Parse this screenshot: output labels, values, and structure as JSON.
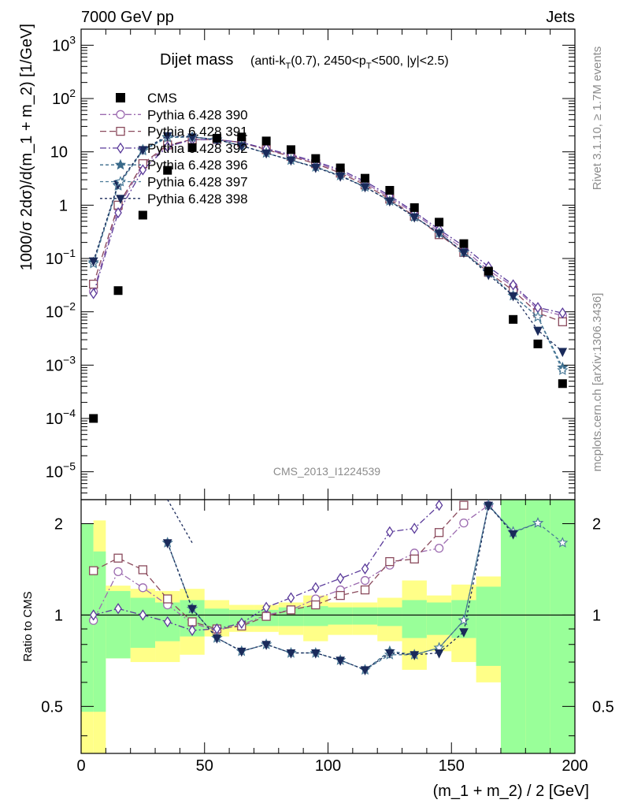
{
  "header": {
    "left": "7000 GeV pp",
    "right": "Jets"
  },
  "side_labels": {
    "rivet": "Rivet 3.1.10, ≥ 1.7M events",
    "mcplots": "mcplots.cern.ch [arXiv:1306.3436]"
  },
  "watermark": "CMS_2013_I1224539",
  "title": {
    "main": "Dijet mass",
    "t1": "(anti-k",
    "sub1": "T",
    "t2": "(0.7), 2450<p",
    "sub2": "T",
    "t3": "<500, |y|<2.5)"
  },
  "colors": {
    "data": "#000000",
    "band_inner": "#99ff99",
    "band_outer": "#ffff88"
  },
  "chart_data": {
    "type": "line",
    "xlabel": "(m_1 + m_2) / 2 [GeV]",
    "xlim": [
      0,
      200
    ],
    "x_ticks": [
      "0",
      "50",
      "100",
      "150",
      "200"
    ],
    "main_panel": {
      "ylabel": "1000/σ 2dσ)/d(m_1 + m_2) [1/GeV]",
      "yscale": "log",
      "ylim": [
        3e-06,
        2000
      ],
      "y_ticks": [
        {
          "v": 1e-05,
          "b": "10",
          "e": "−5"
        },
        {
          "v": 0.0001,
          "b": "10",
          "e": "−4"
        },
        {
          "v": 0.001,
          "b": "10",
          "e": "−3"
        },
        {
          "v": 0.01,
          "b": "10",
          "e": "−2"
        },
        {
          "v": 0.1,
          "b": "10",
          "e": "−1"
        },
        {
          "v": 1,
          "b": "1",
          "e": ""
        },
        {
          "v": 10,
          "b": "10",
          "e": ""
        },
        {
          "v": 100,
          "b": "10",
          "e": "2"
        },
        {
          "v": 1000,
          "b": "10",
          "e": "3"
        }
      ],
      "data": {
        "name": "CMS",
        "x": [
          5,
          15,
          25,
          35,
          45,
          55,
          65,
          75,
          85,
          95,
          105,
          115,
          125,
          135,
          145,
          155,
          165,
          175,
          185,
          195
        ],
        "y": [
          0.0001,
          0.025,
          0.65,
          4.5,
          12,
          18,
          19,
          16,
          11,
          7.5,
          5,
          3.2,
          1.9,
          0.9,
          0.48,
          0.19,
          0.058,
          0.0072,
          0.0025,
          0.00045
        ]
      },
      "series": [
        {
          "name": "Pythia 6.428 390",
          "color": "#9c6bb0",
          "marker": "circle",
          "dash": "8,3,2,3",
          "y": [
            0.024,
            0.9,
            5.5,
            13,
            17,
            17,
            15,
            11,
            8.5,
            6.3,
            4.3,
            2.6,
            1.4,
            0.7,
            0.32,
            0.15,
            0.06,
            0.03,
            0.011,
            0.0085
          ]
        },
        {
          "name": "Pythia 6.428 391",
          "color": "#8a4a5c",
          "marker": "square",
          "dash": "8,4",
          "y": [
            0.033,
            1.0,
            6.0,
            13.5,
            17,
            17,
            15,
            11,
            8.2,
            6.0,
            4.0,
            2.4,
            1.3,
            0.62,
            0.28,
            0.13,
            0.055,
            0.025,
            0.0095,
            0.0065
          ]
        },
        {
          "name": "Pythia 6.428 392",
          "color": "#5a3a9a",
          "marker": "diamond",
          "dash": "8,3,2,3",
          "y": [
            0.022,
            0.72,
            4.6,
            12.5,
            17,
            17,
            15,
            11.5,
            8.8,
            6.6,
            4.6,
            2.8,
            1.5,
            0.75,
            0.35,
            0.17,
            0.07,
            0.032,
            0.012,
            0.0095
          ]
        },
        {
          "name": "Pythia 6.428 396",
          "color": "#3a6a8a",
          "marker": "star-filled",
          "dash": "4,3",
          "y": [
            0.085,
            2.4,
            11,
            19,
            19,
            17,
            13,
            9.5,
            7.0,
            5.2,
            3.6,
            2.2,
            1.2,
            0.6,
            0.3,
            0.13,
            0.055,
            0.02,
            0.008,
            0.0009
          ]
        },
        {
          "name": "Pythia 6.428 397",
          "color": "#4a7a98",
          "marker": "star-open",
          "dash": "4,3",
          "y": [
            0.08,
            2.3,
            10.5,
            18.5,
            19,
            17,
            13,
            9.5,
            7.0,
            5.2,
            3.6,
            2.2,
            1.2,
            0.6,
            0.3,
            0.13,
            0.055,
            0.02,
            0.008,
            0.0008
          ]
        },
        {
          "name": "Pythia 6.428 398",
          "color": "#1a2a5a",
          "marker": "triangle-down",
          "dash": "3,3",
          "y": [
            0.09,
            2.5,
            11,
            20,
            19,
            17,
            13,
            9.5,
            7.0,
            5.1,
            3.5,
            2.2,
            1.2,
            0.6,
            0.3,
            0.13,
            0.05,
            0.02,
            0.0045,
            0.0018
          ]
        }
      ]
    },
    "ratio_panel": {
      "ylabel": "Ratio to CMS",
      "yscale": "log",
      "ylim": [
        0.35,
        2.4
      ],
      "y_ticks": [
        {
          "v": 0.5,
          "label": "0.5"
        },
        {
          "v": 1,
          "label": "1"
        },
        {
          "v": 2,
          "label": "2"
        }
      ],
      "bands": [
        {
          "x0": 0,
          "x1": 5,
          "inner": [
            0.48,
            2.0
          ],
          "outer": [
            0.35,
            2.0
          ]
        },
        {
          "x0": 5,
          "x1": 10,
          "inner": [
            0.48,
            1.62
          ],
          "outer": [
            0.35,
            2.05
          ]
        },
        {
          "x0": 10,
          "x1": 20,
          "inner": [
            0.72,
            1.2
          ],
          "outer": [
            0.72,
            1.25
          ]
        },
        {
          "x0": 20,
          "x1": 30,
          "inner": [
            0.78,
            1.14
          ],
          "outer": [
            0.7,
            1.22
          ]
        },
        {
          "x0": 30,
          "x1": 40,
          "inner": [
            0.82,
            1.1
          ],
          "outer": [
            0.7,
            1.2
          ]
        },
        {
          "x0": 40,
          "x1": 50,
          "inner": [
            0.85,
            1.12
          ],
          "outer": [
            0.74,
            1.22
          ]
        },
        {
          "x0": 50,
          "x1": 60,
          "inner": [
            0.9,
            1.05
          ],
          "outer": [
            0.85,
            1.12
          ]
        },
        {
          "x0": 60,
          "x1": 70,
          "inner": [
            0.92,
            1.04
          ],
          "outer": [
            0.88,
            1.08
          ]
        },
        {
          "x0": 70,
          "x1": 80,
          "inner": [
            0.92,
            1.04
          ],
          "outer": [
            0.88,
            1.08
          ]
        },
        {
          "x0": 80,
          "x1": 90,
          "inner": [
            0.92,
            1.06
          ],
          "outer": [
            0.86,
            1.1
          ]
        },
        {
          "x0": 90,
          "x1": 100,
          "inner": [
            0.92,
            1.07
          ],
          "outer": [
            0.82,
            1.16
          ]
        },
        {
          "x0": 100,
          "x1": 110,
          "inner": [
            0.93,
            1.06
          ],
          "outer": [
            0.86,
            1.1
          ]
        },
        {
          "x0": 110,
          "x1": 120,
          "inner": [
            0.93,
            1.06
          ],
          "outer": [
            0.86,
            1.1
          ]
        },
        {
          "x0": 120,
          "x1": 130,
          "inner": [
            0.92,
            1.06
          ],
          "outer": [
            0.82,
            1.14
          ]
        },
        {
          "x0": 130,
          "x1": 140,
          "inner": [
            0.84,
            1.12
          ],
          "outer": [
            0.66,
            1.3
          ]
        },
        {
          "x0": 140,
          "x1": 150,
          "inner": [
            0.86,
            1.1
          ],
          "outer": [
            0.76,
            1.16
          ]
        },
        {
          "x0": 150,
          "x1": 160,
          "inner": [
            0.84,
            1.12
          ],
          "outer": [
            0.7,
            1.26
          ]
        },
        {
          "x0": 160,
          "x1": 170,
          "inner": [
            0.68,
            1.24
          ],
          "outer": [
            0.6,
            1.34
          ]
        },
        {
          "x0": 170,
          "x1": 180,
          "inner": [
            0.35,
            2.4
          ],
          "outer": [
            0.35,
            2.4
          ]
        },
        {
          "x0": 180,
          "x1": 190,
          "inner": [
            0.35,
            2.4
          ],
          "outer": [
            0.35,
            2.4
          ]
        },
        {
          "x0": 190,
          "x1": 200,
          "inner": [
            0.35,
            2.4
          ],
          "outer": [
            0.35,
            2.4
          ]
        }
      ],
      "series": [
        {
          "name": "Pythia 6.428 390",
          "y": [
            0.96,
            1.39,
            1.23,
            1.08,
            0.94,
            0.89,
            0.93,
            1.0,
            1.04,
            1.13,
            1.21,
            1.3,
            1.46,
            1.6,
            1.66,
            2.01,
            2.3,
            null,
            null,
            null
          ]
        },
        {
          "name": "Pythia 6.428 391",
          "y": [
            1.4,
            1.54,
            1.41,
            1.13,
            0.95,
            0.9,
            0.92,
            0.99,
            1.04,
            1.08,
            1.16,
            1.21,
            1.5,
            1.53,
            1.87,
            2.3,
            null,
            null,
            null,
            null
          ]
        },
        {
          "name": "Pythia 6.428 392",
          "y": [
            1.0,
            1.05,
            1.0,
            0.95,
            0.89,
            0.9,
            0.94,
            1.06,
            1.14,
            1.23,
            1.32,
            1.42,
            1.88,
            1.93,
            2.3,
            null,
            null,
            null,
            null,
            null
          ]
        },
        {
          "name": "Pythia 6.428 396",
          "y": [
            null,
            null,
            null,
            1.73,
            1.05,
            0.84,
            0.76,
            0.8,
            0.75,
            0.75,
            0.71,
            0.66,
            0.76,
            0.74,
            0.78,
            0.96,
            2.3,
            1.87,
            2.01,
            null
          ]
        },
        {
          "name": "Pythia 6.428 397",
          "y": [
            null,
            null,
            null,
            1.73,
            1.05,
            0.84,
            0.76,
            0.8,
            0.75,
            0.75,
            0.71,
            0.66,
            0.74,
            0.74,
            0.78,
            0.96,
            2.3,
            1.88,
            2.01,
            1.73
          ]
        },
        {
          "name": "Pythia 6.428 398",
          "y": [
            null,
            null,
            null,
            1.73,
            1.05,
            0.84,
            0.76,
            0.8,
            0.75,
            0.75,
            0.71,
            0.66,
            0.75,
            0.74,
            0.75,
            0.88,
            2.3,
            1.85,
            null,
            null
          ]
        }
      ]
    }
  }
}
